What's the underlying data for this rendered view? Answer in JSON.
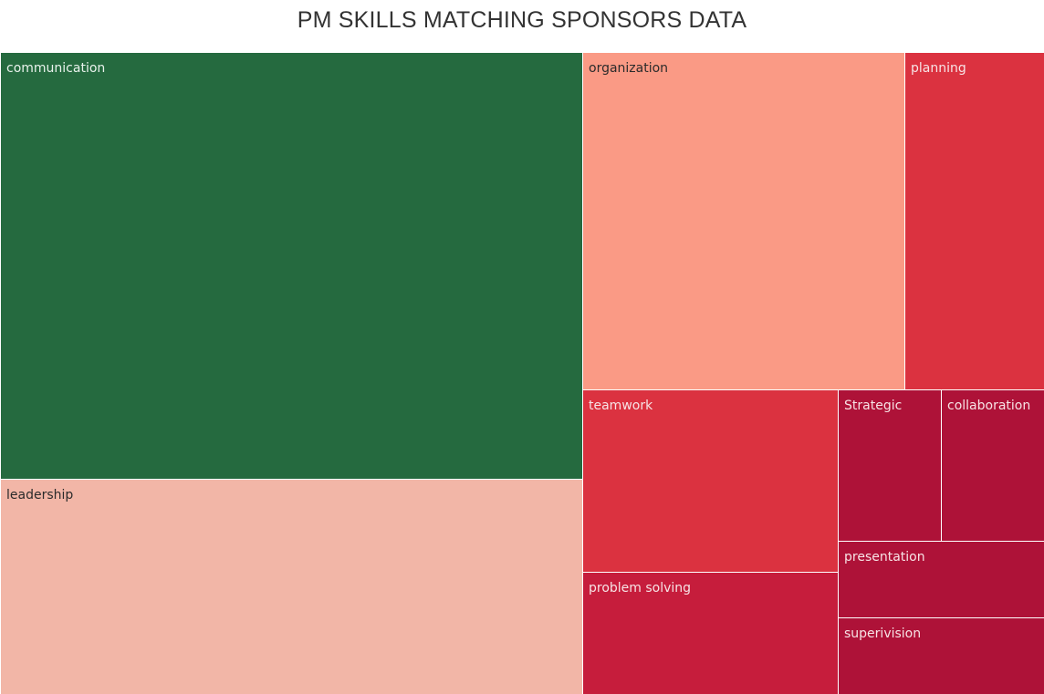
{
  "chart_data": {
    "type": "treemap",
    "title": "PM SKILLS MATCHING SPONSORS DATA",
    "tiles": [
      {
        "label": "communication",
        "color": "#256a3f",
        "text_color": "#e9f2ec"
      },
      {
        "label": "leadership",
        "color": "#f2b6a7",
        "text_color": "#2b2b2b"
      },
      {
        "label": "organization",
        "color": "#fa9a85",
        "text_color": "#2b2b2b"
      },
      {
        "label": "planning",
        "color": "#db3240",
        "text_color": "#f7e3e5"
      },
      {
        "label": "teamwork",
        "color": "#db3240",
        "text_color": "#f7e3e5"
      },
      {
        "label": "problem solving",
        "color": "#c61d3c",
        "text_color": "#f7e3e5"
      },
      {
        "label": "Strategic",
        "color": "#ae1238",
        "text_color": "#f7e3e5"
      },
      {
        "label": "collaboration",
        "color": "#ae1238",
        "text_color": "#f7e3e5"
      },
      {
        "label": "presentation",
        "color": "#ae1238",
        "text_color": "#f7e3e5"
      },
      {
        "label": "superivision",
        "color": "#ae1238",
        "text_color": "#f7e3e5"
      }
    ]
  }
}
